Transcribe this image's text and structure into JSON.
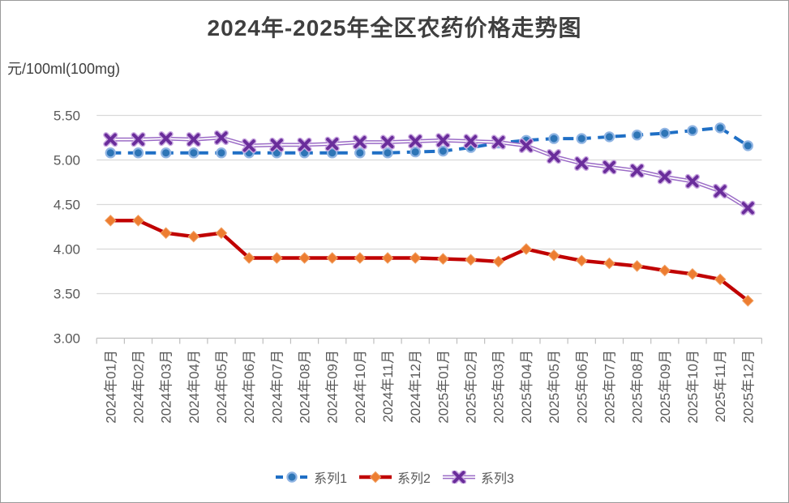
{
  "title": "2024年-2025年全区农药价格走势图",
  "unit_label": "元/100ml(100mg)",
  "chart_data": {
    "type": "line",
    "categories": [
      "2024年01月",
      "2024年02月",
      "2024年03月",
      "2024年04月",
      "2024年05月",
      "2024年06月",
      "2024年07月",
      "2024年08月",
      "2024年09月",
      "2024年10月",
      "2024年11月",
      "2024年12月",
      "2025年01月",
      "2025年02月",
      "2025年03月",
      "2025年04月",
      "2025年05月",
      "2025年06月",
      "2025年07月",
      "2025年08月",
      "2025年09月",
      "2025年10月",
      "2025年11月",
      "2025年12月"
    ],
    "series": [
      {
        "name": "系列1",
        "line_style": "dashed",
        "line_color": "#1f6fc5",
        "marker": "circle",
        "marker_fill": "#2e75b6",
        "marker_edge": "#8fb4e3",
        "values": [
          5.08,
          5.08,
          5.08,
          5.08,
          5.08,
          5.08,
          5.08,
          5.08,
          5.08,
          5.08,
          5.08,
          5.09,
          5.1,
          5.14,
          5.19,
          5.22,
          5.24,
          5.24,
          5.26,
          5.28,
          5.3,
          5.33,
          5.36,
          5.16
        ]
      },
      {
        "name": "系列2",
        "line_style": "solid",
        "line_color": "#c00000",
        "marker": "diamond",
        "marker_fill": "#ed7d31",
        "marker_edge": "#f0a062",
        "values": [
          4.32,
          4.32,
          4.18,
          4.14,
          4.18,
          3.9,
          3.9,
          3.9,
          3.9,
          3.9,
          3.9,
          3.9,
          3.89,
          3.88,
          3.86,
          4.0,
          3.93,
          3.87,
          3.84,
          3.81,
          3.76,
          3.72,
          3.66,
          3.42
        ]
      },
      {
        "name": "系列3",
        "line_style": "double",
        "line_color": "#9b6bc6",
        "marker": "x",
        "marker_fill": "#6a2d9b",
        "marker_edge": "#c9a8e0",
        "values": [
          5.23,
          5.23,
          5.24,
          5.23,
          5.25,
          5.16,
          5.17,
          5.17,
          5.18,
          5.2,
          5.2,
          5.21,
          5.22,
          5.21,
          5.2,
          5.16,
          5.04,
          4.96,
          4.92,
          4.88,
          4.81,
          4.76,
          4.65,
          4.46
        ]
      }
    ],
    "ylabel": "元/100ml(100mg)",
    "ylim": [
      3.0,
      5.5
    ],
    "ytick_labels": [
      "5.50",
      "5.00",
      "4.50",
      "4.00",
      "3.50",
      "3.00"
    ],
    "grid": true,
    "legend_position": "bottom",
    "colors": {
      "grid_line": "#d9d9d9",
      "axis_line": "#bfbfbf",
      "tick_label": "#595959",
      "title_text": "#3f3f3f"
    }
  }
}
